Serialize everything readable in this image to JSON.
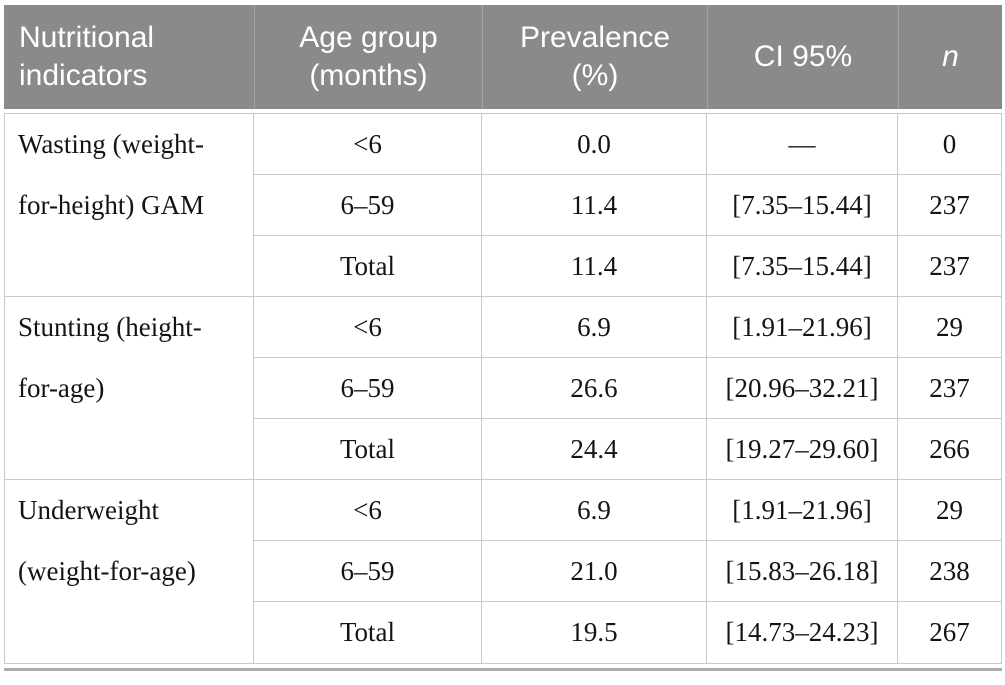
{
  "colors": {
    "header_bg": "#8a8a8a",
    "header_text": "#ffffff",
    "header_divider": "#a2a2a2",
    "body_border": "#c9c9c9",
    "bottom_rule": "#ababab",
    "body_text": "#141414"
  },
  "header": {
    "indicators": "Nutritional\nindicators",
    "age_group": "Age group\n(months)",
    "prevalence": "Prevalence\n(%)",
    "ci": "CI 95%",
    "n": "n"
  },
  "sections": [
    {
      "indicator": "Wasting (weight-\nfor-height) GAM",
      "rows": [
        {
          "age": "<6",
          "prevalence": "0.0",
          "ci": "—",
          "n": "0"
        },
        {
          "age": "6–59",
          "prevalence": "11.4",
          "ci": "[7.35–15.44]",
          "n": "237"
        },
        {
          "age": "Total",
          "prevalence": "11.4",
          "ci": "[7.35–15.44]",
          "n": "237"
        }
      ]
    },
    {
      "indicator": "Stunting (height-\nfor-age)",
      "rows": [
        {
          "age": "<6",
          "prevalence": "6.9",
          "ci": "[1.91–21.96]",
          "n": "29"
        },
        {
          "age": "6–59",
          "prevalence": "26.6",
          "ci": "[20.96–32.21]",
          "n": "237"
        },
        {
          "age": "Total",
          "prevalence": "24.4",
          "ci": "[19.27–29.60]",
          "n": "266"
        }
      ]
    },
    {
      "indicator": "Underweight\n(weight-for-age)",
      "rows": [
        {
          "age": "<6",
          "prevalence": "6.9",
          "ci": "[1.91–21.96]",
          "n": "29"
        },
        {
          "age": "6–59",
          "prevalence": "21.0",
          "ci": "[15.83–26.18]",
          "n": "238"
        },
        {
          "age": "Total",
          "prevalence": "19.5",
          "ci": "[14.73–24.23]",
          "n": "267"
        }
      ]
    }
  ]
}
